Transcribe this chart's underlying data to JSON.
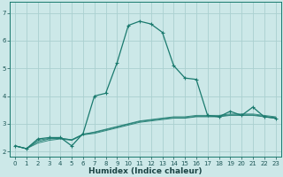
{
  "xlabel": "Humidex (Indice chaleur)",
  "ylabel": "",
  "background_color": "#cce8e8",
  "grid_color": "#aad0d0",
  "line_color": "#1a7a6e",
  "x": [
    0,
    1,
    2,
    3,
    4,
    5,
    6,
    7,
    8,
    9,
    10,
    11,
    12,
    13,
    14,
    15,
    16,
    17,
    18,
    19,
    20,
    21,
    22,
    23
  ],
  "y_main": [
    2.2,
    2.1,
    2.45,
    2.5,
    2.5,
    2.2,
    2.65,
    4.0,
    4.1,
    5.2,
    6.55,
    6.7,
    6.6,
    6.3,
    5.1,
    4.65,
    4.6,
    3.3,
    3.25,
    3.45,
    3.3,
    3.6,
    3.25,
    3.2
  ],
  "y_line2": [
    2.2,
    2.1,
    2.3,
    2.4,
    2.45,
    2.4,
    2.6,
    2.65,
    2.75,
    2.85,
    2.95,
    3.05,
    3.1,
    3.15,
    3.2,
    3.2,
    3.25,
    3.25,
    3.25,
    3.3,
    3.3,
    3.3,
    3.25,
    3.2
  ],
  "y_line3": [
    2.2,
    2.1,
    2.35,
    2.45,
    2.47,
    2.42,
    2.62,
    2.68,
    2.78,
    2.88,
    2.98,
    3.08,
    3.13,
    3.18,
    3.22,
    3.22,
    3.27,
    3.27,
    3.27,
    3.32,
    3.32,
    3.32,
    3.27,
    3.22
  ],
  "y_line4": [
    2.2,
    2.1,
    2.4,
    2.47,
    2.48,
    2.42,
    2.62,
    2.7,
    2.8,
    2.9,
    3.0,
    3.1,
    3.15,
    3.2,
    3.25,
    3.25,
    3.3,
    3.3,
    3.3,
    3.35,
    3.35,
    3.35,
    3.3,
    3.25
  ],
  "ylim": [
    1.8,
    7.4
  ],
  "yticks": [
    2,
    3,
    4,
    5,
    6,
    7
  ],
  "xticks": [
    0,
    1,
    2,
    3,
    4,
    5,
    6,
    7,
    8,
    9,
    10,
    11,
    12,
    13,
    14,
    15,
    16,
    17,
    18,
    19,
    20,
    21,
    22,
    23
  ],
  "tick_fontsize": 5.0,
  "xlabel_fontsize": 6.5
}
